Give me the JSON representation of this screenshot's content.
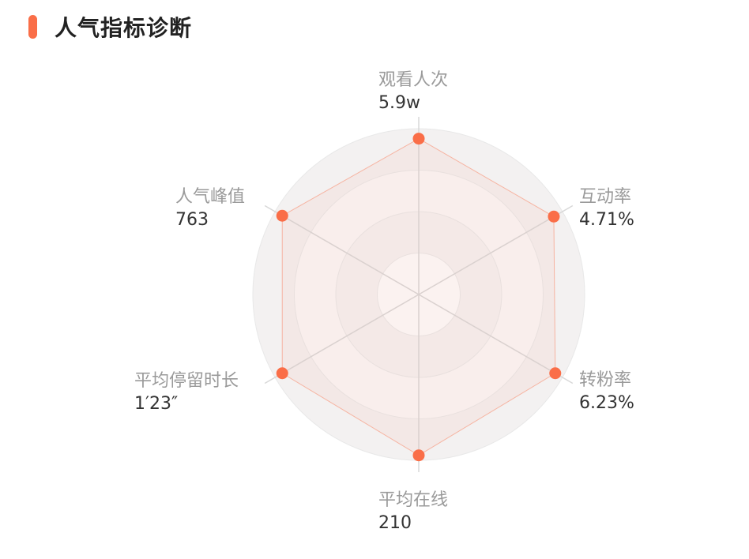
{
  "header": {
    "title": "人气指标诊断",
    "accent_color": "#fa6e48"
  },
  "chart_data": {
    "type": "radar",
    "title": "人气指标诊断",
    "axes": [
      {
        "name": "观看人次",
        "value_label": "5.9w"
      },
      {
        "name": "互动率",
        "value_label": "4.71%"
      },
      {
        "name": "转粉率",
        "value_label": "6.23%"
      },
      {
        "name": "平均在线",
        "value_label": "210"
      },
      {
        "name": "平均停留时长",
        "value_label": "1′23″"
      },
      {
        "name": "人气峰值",
        "value_label": "763"
      }
    ],
    "scale_max": 1,
    "rings": 4,
    "series": [
      {
        "values": [
          0.94,
          0.94,
          0.95,
          0.97,
          0.95,
          0.95
        ],
        "color": "#fa6e48"
      }
    ]
  }
}
